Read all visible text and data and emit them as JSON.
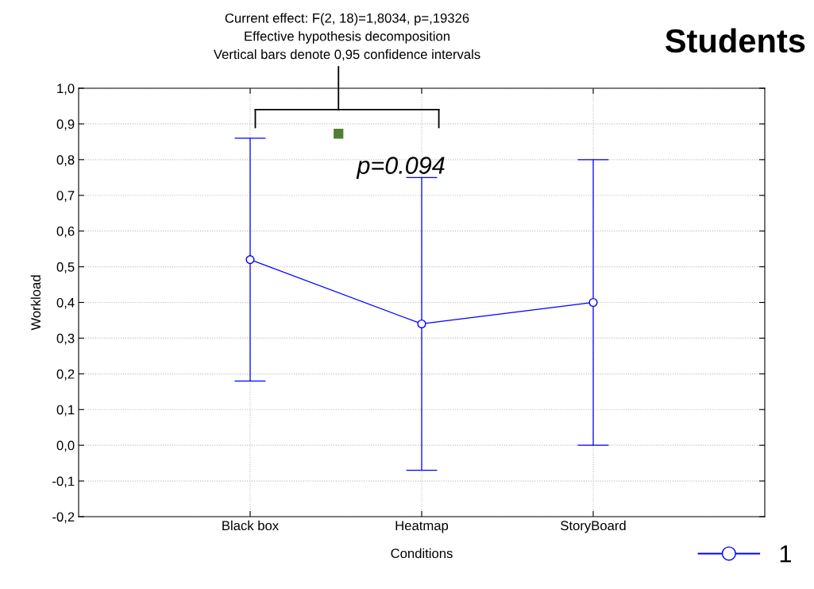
{
  "chart_data": {
    "type": "line",
    "title": "Students",
    "subtitle": "Current effect: F(2, 18)=1,8034, p=,19326\nEffective hypothesis decomposition\nVertical bars denote 0,95 confidence intervals",
    "xlabel": "Conditions",
    "ylabel": "Workload",
    "categories": [
      "Black box",
      "Heatmap",
      "StoryBoard"
    ],
    "series": [
      {
        "name": "1",
        "color": "#0000ff",
        "values": [
          0.52,
          0.34,
          0.4
        ],
        "errors": [
          0.34,
          0.41,
          0.4
        ]
      }
    ],
    "ylim": [
      -0.2,
      1.0
    ],
    "yticks": [
      {
        "value": -0.2,
        "label": "-0,2"
      },
      {
        "value": -0.1,
        "label": "-0,1"
      },
      {
        "value": 0.0,
        "label": "0,0"
      },
      {
        "value": 0.1,
        "label": "0,1"
      },
      {
        "value": 0.2,
        "label": "0,2"
      },
      {
        "value": 0.3,
        "label": "0,3"
      },
      {
        "value": 0.4,
        "label": "0,4"
      },
      {
        "value": 0.5,
        "label": "0,5"
      },
      {
        "value": 0.6,
        "label": "0,6"
      },
      {
        "value": 0.7,
        "label": "0,7"
      },
      {
        "value": 0.8,
        "label": "0,8"
      },
      {
        "value": 0.9,
        "label": "0,9"
      },
      {
        "value": 1.0,
        "label": "1,0"
      }
    ],
    "annotations": [
      "p=0.094"
    ],
    "grid": true,
    "legend": "bottom right",
    "marker": "circle",
    "line_style": "solid"
  }
}
